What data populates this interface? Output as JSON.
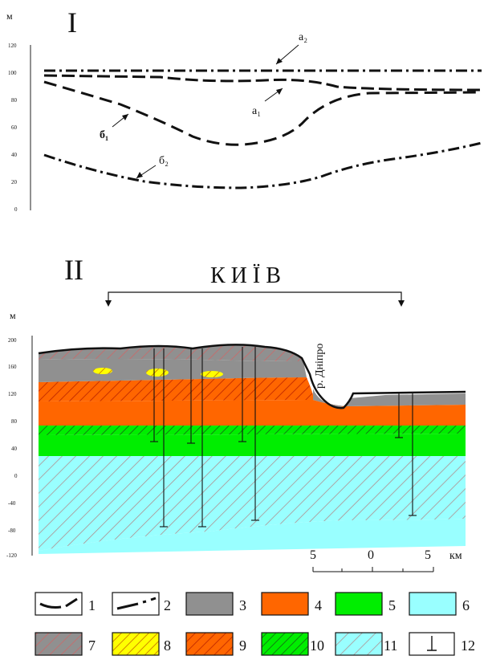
{
  "panel_top": {
    "label": "I",
    "y_unit": "м",
    "y_ticks": [
      "120",
      "100",
      "80",
      "60",
      "40",
      "20",
      "0"
    ],
    "curve_labels": [
      "a₂",
      "a₁",
      "б₁",
      "б₂"
    ]
  },
  "panel_bottom": {
    "label": "II",
    "city": "К И Ї В",
    "river": "р. Дніпро",
    "y_unit": "м",
    "y_ticks": [
      "200",
      "160",
      "120",
      "80",
      "40",
      "0",
      "-40",
      "-80",
      "-120"
    ],
    "scale_ticks": [
      "5",
      "0",
      "5"
    ],
    "scale_unit": "км"
  },
  "legend": [
    {
      "num": "1",
      "symbol": "dash-line"
    },
    {
      "num": "2",
      "symbol": "dashdot-line"
    },
    {
      "num": "3",
      "symbol": "fill",
      "color": "#909090"
    },
    {
      "num": "4",
      "symbol": "fill",
      "color": "#ff6600"
    },
    {
      "num": "5",
      "symbol": "fill",
      "color": "#00ee00"
    },
    {
      "num": "6",
      "symbol": "fill",
      "color": "#99ffff"
    },
    {
      "num": "7",
      "symbol": "hatch",
      "color": "#909090",
      "hatch": "#c07070"
    },
    {
      "num": "8",
      "symbol": "hatch",
      "color": "#ffff00",
      "hatch": "#d08800"
    },
    {
      "num": "9",
      "symbol": "hatch",
      "color": "#ff6600",
      "hatch": "#c83000"
    },
    {
      "num": "10",
      "symbol": "hatch",
      "color": "#00ee00",
      "hatch": "#108010"
    },
    {
      "num": "11",
      "symbol": "hatch",
      "color": "#99ffff",
      "hatch": "#b09090"
    },
    {
      "num": "12",
      "symbol": "borehole"
    }
  ]
}
